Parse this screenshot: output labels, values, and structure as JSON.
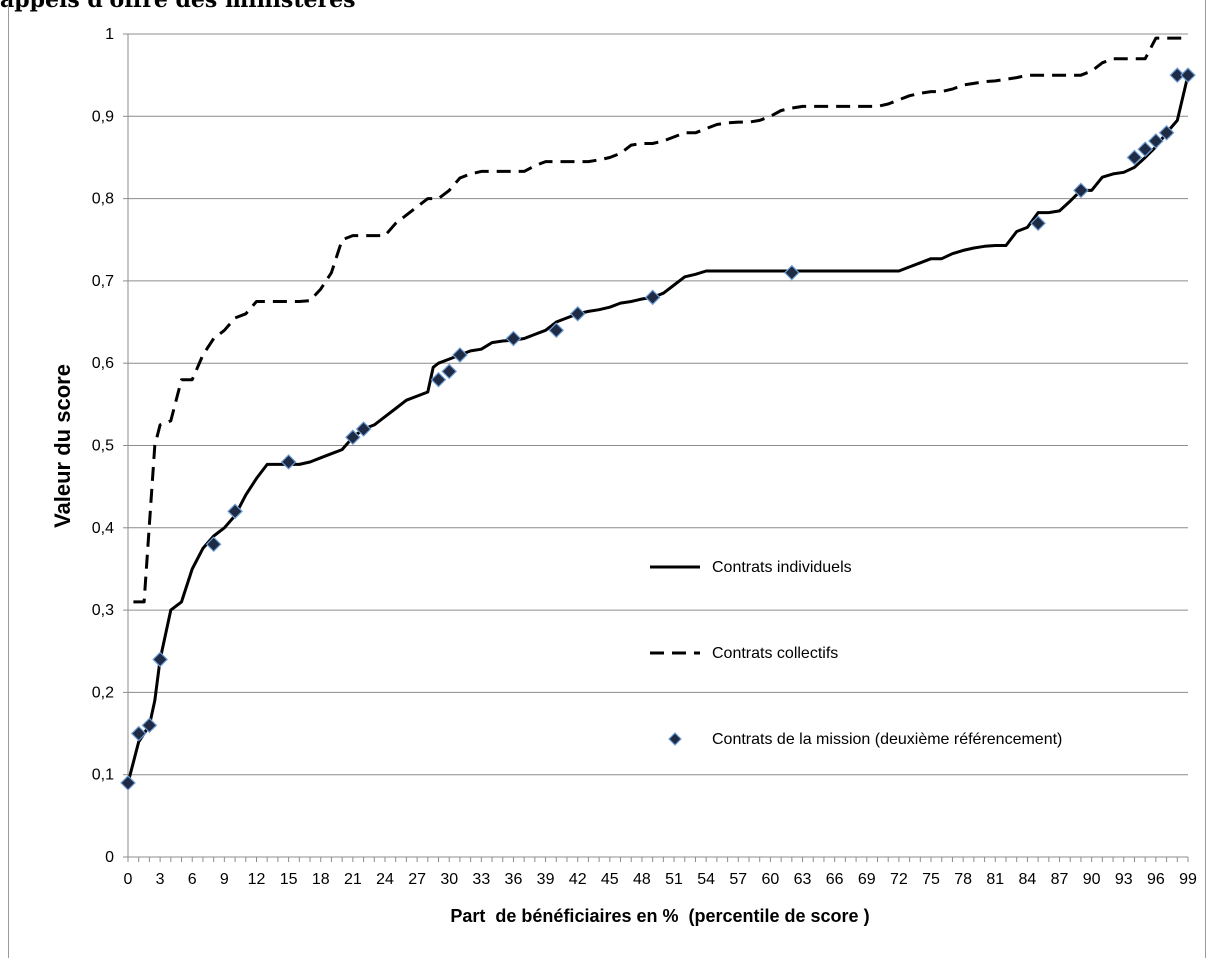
{
  "page_heading": "appels d'offre des ministères",
  "chart_data": {
    "type": "line",
    "xlabel": "Part  de bénéficiaires en %  (percentile de score )",
    "ylabel": "Valeur du score",
    "xlim": [
      0,
      99
    ],
    "ylim": [
      0,
      1
    ],
    "x_ticks": [
      "0",
      "3",
      "6",
      "9",
      "12",
      "15",
      "18",
      "21",
      "24",
      "27",
      "30",
      "33",
      "36",
      "39",
      "42",
      "45",
      "48",
      "51",
      "54",
      "57",
      "60",
      "63",
      "66",
      "69",
      "72",
      "75",
      "78",
      "81",
      "84",
      "87",
      "90",
      "93",
      "96",
      "99"
    ],
    "y_ticks": [
      "0",
      "0,1",
      "0,2",
      "0,3",
      "0,4",
      "0,5",
      "0,6",
      "0,7",
      "0,8",
      "0,9",
      "1"
    ],
    "grid": "horizontal",
    "legend_position": "right-center",
    "series": [
      {
        "name": "Contrats individuels",
        "style": "solid",
        "color": "#000000",
        "x": [
          0,
          1,
          2,
          2.5,
          3,
          4,
          5,
          6,
          7,
          8,
          9,
          10,
          11,
          12,
          13,
          14,
          15,
          16,
          17,
          18,
          19,
          20,
          21,
          22,
          23,
          24,
          25,
          26,
          27,
          28,
          28.5,
          29,
          30,
          31,
          32,
          33,
          34,
          35,
          36,
          37,
          38,
          39,
          40,
          41,
          42,
          43,
          44,
          45,
          46,
          47,
          48,
          49,
          50,
          51,
          52,
          53,
          54,
          55,
          60,
          65,
          70,
          72,
          73,
          74,
          75,
          76,
          77,
          78,
          79,
          80,
          81,
          82,
          83,
          84,
          85,
          86,
          87,
          88,
          89,
          90,
          91,
          92,
          93,
          94,
          95,
          96,
          97,
          98,
          99
        ],
        "y": [
          0.09,
          0.14,
          0.16,
          0.19,
          0.24,
          0.3,
          0.31,
          0.35,
          0.375,
          0.39,
          0.4,
          0.415,
          0.44,
          0.46,
          0.477,
          0.477,
          0.477,
          0.477,
          0.48,
          0.485,
          0.49,
          0.495,
          0.51,
          0.52,
          0.525,
          0.535,
          0.545,
          0.555,
          0.56,
          0.565,
          0.595,
          0.6,
          0.605,
          0.61,
          0.615,
          0.617,
          0.625,
          0.627,
          0.628,
          0.63,
          0.635,
          0.64,
          0.65,
          0.655,
          0.66,
          0.663,
          0.665,
          0.668,
          0.673,
          0.675,
          0.678,
          0.68,
          0.685,
          0.695,
          0.705,
          0.708,
          0.712,
          0.712,
          0.712,
          0.712,
          0.712,
          0.712,
          0.717,
          0.722,
          0.727,
          0.727,
          0.733,
          0.737,
          0.74,
          0.742,
          0.743,
          0.743,
          0.76,
          0.765,
          0.783,
          0.783,
          0.785,
          0.797,
          0.81,
          0.81,
          0.826,
          0.83,
          0.832,
          0.838,
          0.85,
          0.863,
          0.88,
          0.895,
          0.95
        ]
      },
      {
        "name": "Contrats collectifs",
        "style": "dashed",
        "color": "#000000",
        "x": [
          0.5,
          1.5,
          2.5,
          3,
          4,
          5,
          6,
          7,
          8,
          9,
          10,
          11,
          12,
          13,
          14,
          15,
          16,
          17,
          18,
          19,
          20,
          21,
          22,
          23,
          24,
          25,
          26,
          27,
          28,
          29,
          30,
          31,
          32,
          33,
          34,
          35,
          36,
          37,
          38,
          39,
          40,
          41,
          42,
          43,
          44,
          45,
          46,
          47,
          48,
          49,
          50,
          51,
          52,
          53,
          54,
          55,
          56,
          57,
          58,
          59,
          60,
          61,
          62,
          63,
          64,
          65,
          66,
          67,
          68,
          69,
          70,
          71,
          72,
          73,
          74,
          75,
          76,
          77,
          78,
          79,
          80,
          81,
          82,
          83,
          84,
          85,
          86,
          87,
          88,
          89,
          90,
          91,
          92,
          93,
          94,
          95,
          96,
          97,
          98,
          99
        ],
        "y": [
          0.31,
          0.31,
          0.5,
          0.525,
          0.53,
          0.58,
          0.58,
          0.61,
          0.63,
          0.64,
          0.655,
          0.66,
          0.675,
          0.675,
          0.675,
          0.675,
          0.675,
          0.676,
          0.69,
          0.71,
          0.75,
          0.755,
          0.755,
          0.755,
          0.755,
          0.77,
          0.78,
          0.79,
          0.8,
          0.8,
          0.81,
          0.825,
          0.83,
          0.833,
          0.833,
          0.833,
          0.833,
          0.833,
          0.84,
          0.845,
          0.845,
          0.845,
          0.845,
          0.845,
          0.847,
          0.85,
          0.855,
          0.865,
          0.867,
          0.867,
          0.87,
          0.875,
          0.88,
          0.88,
          0.885,
          0.89,
          0.892,
          0.893,
          0.893,
          0.895,
          0.9,
          0.907,
          0.91,
          0.912,
          0.912,
          0.912,
          0.912,
          0.912,
          0.912,
          0.912,
          0.912,
          0.915,
          0.92,
          0.925,
          0.928,
          0.93,
          0.93,
          0.933,
          0.938,
          0.94,
          0.942,
          0.943,
          0.945,
          0.947,
          0.95,
          0.95,
          0.95,
          0.95,
          0.95,
          0.95,
          0.955,
          0.965,
          0.97,
          0.97,
          0.97,
          0.97,
          0.995,
          0.995,
          0.995,
          0.995
        ]
      },
      {
        "name": "Contrats de la mission (deuxième référencement)",
        "style": "marker",
        "color": "#1f2a44",
        "stroke": "#6f9fd6",
        "x": [
          0,
          1,
          2,
          3,
          8,
          10,
          15,
          21,
          22,
          29,
          30,
          31,
          36,
          40,
          42,
          49,
          62,
          85,
          89,
          94,
          95,
          96,
          97,
          98,
          99
        ],
        "y": [
          0.09,
          0.15,
          0.16,
          0.24,
          0.38,
          0.42,
          0.48,
          0.51,
          0.52,
          0.58,
          0.59,
          0.61,
          0.63,
          0.64,
          0.66,
          0.68,
          0.71,
          0.77,
          0.81,
          0.85,
          0.86,
          0.87,
          0.88,
          0.95,
          0.95
        ]
      }
    ]
  }
}
